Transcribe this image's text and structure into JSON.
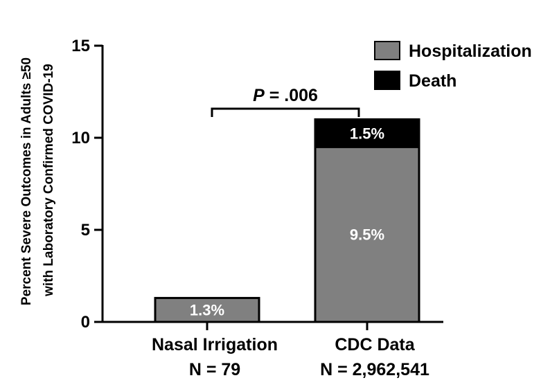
{
  "chart_data": {
    "type": "bar",
    "stacked": true,
    "categories": [
      {
        "label": "Nasal Irrigation",
        "n_label": "N = 79"
      },
      {
        "label": "CDC Data",
        "n_label": "N = 2,962,541"
      }
    ],
    "series": [
      {
        "name": "Hospitalization",
        "color": "#808080",
        "values": [
          1.3,
          9.5
        ],
        "value_labels": [
          "1.3%",
          "9.5%"
        ]
      },
      {
        "name": "Death",
        "color": "#000000",
        "values": [
          0,
          1.5
        ],
        "value_labels": [
          "",
          "1.5%"
        ]
      }
    ],
    "ylabel_line1": "Percent Severe Outcomes in Adults ≥50",
    "ylabel_line2": "with Laboratory Confirmed COVID-19",
    "ylim": [
      0,
      15
    ],
    "yticks": [
      0,
      5,
      10,
      15
    ],
    "legend_position": "top-right",
    "significance": {
      "label_italic": "P",
      "label_rest": " = .006",
      "between": [
        0,
        1
      ]
    }
  }
}
